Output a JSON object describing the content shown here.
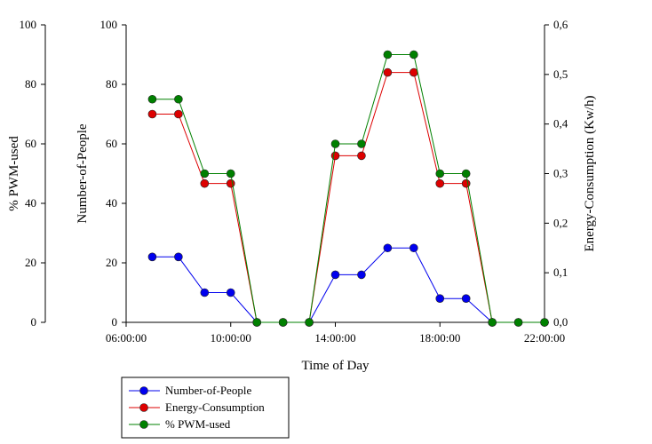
{
  "chart_data": {
    "type": "line",
    "xlabel": "Time of Day",
    "x_ticks": [
      "06:00:00",
      "10:00:00",
      "14:00:00",
      "18:00:00",
      "22:00:00"
    ],
    "x": [
      "07:00:00",
      "08:00:00",
      "09:00:00",
      "10:00:00",
      "11:00:00",
      "12:00:00",
      "13:00:00",
      "14:00:00",
      "15:00:00",
      "16:00:00",
      "17:00:00",
      "18:00:00",
      "19:00:00",
      "20:00:00",
      "21:00:00",
      "22:00:00"
    ],
    "xlim": [
      "06:00:00",
      "22:00:00"
    ],
    "axes": {
      "outer_left": {
        "label": "% PWM-used",
        "ticks": [
          "0",
          "20",
          "40",
          "60",
          "80",
          "100"
        ],
        "ylim": [
          0,
          100
        ]
      },
      "inner_left": {
        "label": "Number-of-People",
        "ticks": [
          "0",
          "20",
          "40",
          "60",
          "80",
          "100"
        ],
        "ylim": [
          0,
          100
        ]
      },
      "right": {
        "label": "Energy-Consumption (Kw/h)",
        "ticks": [
          "0,0",
          "0,1",
          "0,2",
          "0,3",
          "0,4",
          "0,5",
          "0,6"
        ],
        "ylim": [
          0,
          0.6
        ]
      }
    },
    "series": [
      {
        "name": "Number-of-People",
        "axis": "inner_left",
        "color": "#0000ee",
        "values": [
          22,
          22,
          10,
          10,
          0,
          0,
          0,
          16,
          16,
          25,
          25,
          8,
          8,
          0,
          null,
          null
        ]
      },
      {
        "name": "Energy-Consumption",
        "axis": "right",
        "color": "#dd0000",
        "values": [
          0.42,
          0.42,
          0.28,
          0.28,
          0,
          0,
          0,
          0.336,
          0.336,
          0.504,
          0.504,
          0.28,
          0.28,
          0,
          0,
          0
        ]
      },
      {
        "name": "% PWM-used",
        "axis": "outer_left",
        "color": "#008000",
        "values": [
          75,
          75,
          50,
          50,
          0,
          0,
          0,
          60,
          60,
          90,
          90,
          50,
          50,
          0,
          0,
          0
        ]
      }
    ],
    "legend_position": "bottom-left, below plot",
    "grid": false
  }
}
